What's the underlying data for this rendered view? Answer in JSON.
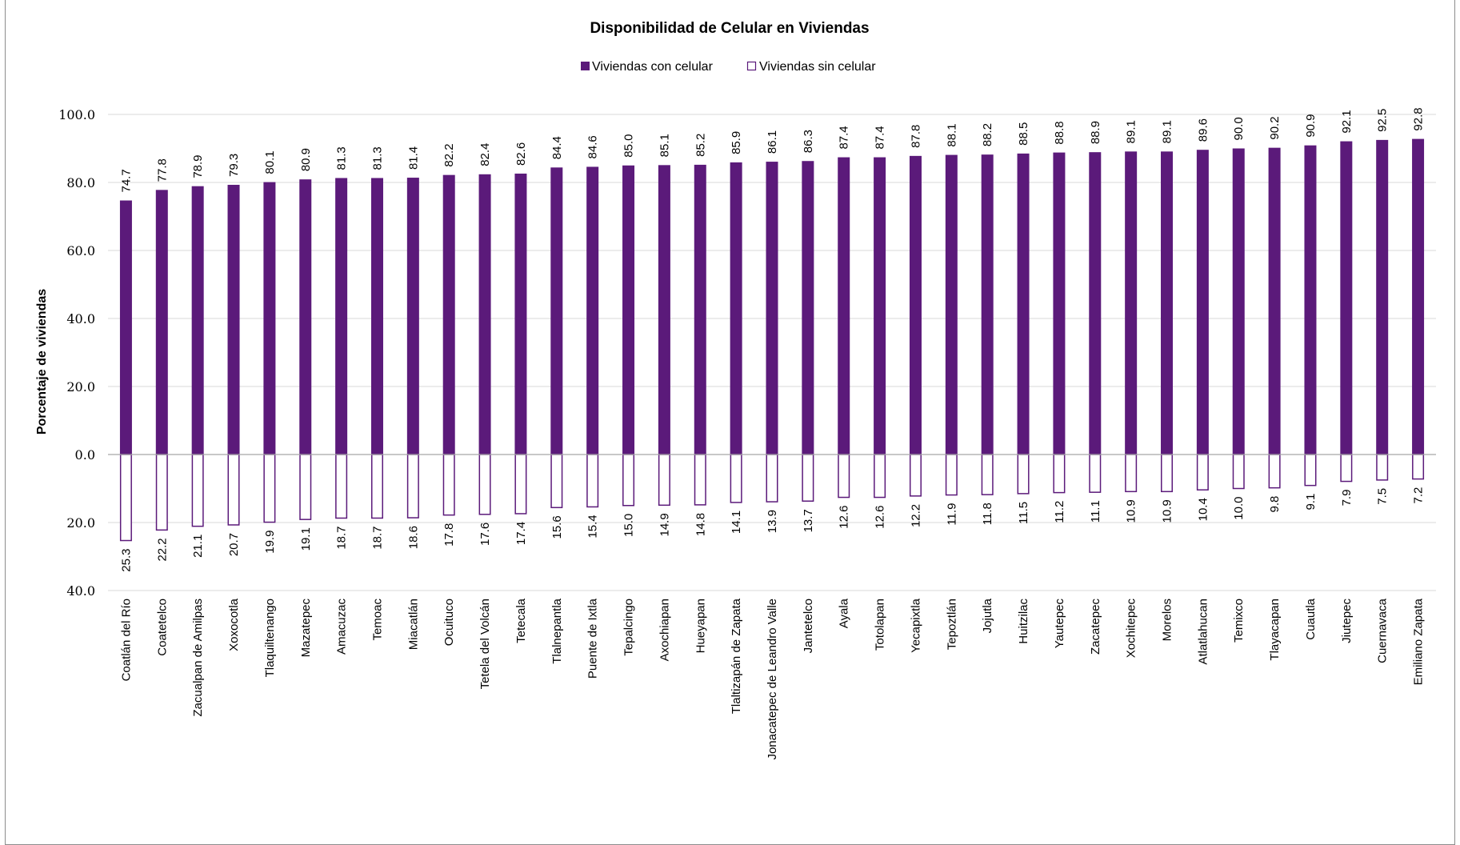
{
  "chart_data": {
    "type": "bar",
    "title": "Disponibilidad de Celular en Viviendas",
    "xlabel": "",
    "ylabel": "Porcentaje de viviendas",
    "ylim": [
      -40,
      100
    ],
    "yticks": [
      100,
      80,
      60,
      40,
      20,
      0,
      -20,
      -40
    ],
    "ytick_labels": [
      "100.0",
      "80.0",
      "60.0",
      "40.0",
      "20.0",
      "0.0",
      "20.0",
      "40.0"
    ],
    "legend_position": "top-center",
    "grid": true,
    "categories": [
      "Coatlán del Río",
      "Coatetelco",
      "Zacualpan de Amilpas",
      "Xoxocotla",
      "Tlaquiltenango",
      "Mazatepec",
      "Amacuzac",
      "Temoac",
      "Miacatlán",
      "Ocuituco",
      "Tetela del Volcán",
      "Tetecala",
      "Tlalnepantla",
      "Puente de Ixtla",
      "Tepalcingo",
      "Axochiapan",
      "Hueyapan",
      "Tlaltizapán de Zapata",
      "Jonacatepec de Leandro Valle",
      "Jantetelco",
      "Ayala",
      "Totolapan",
      "Yecapixtla",
      "Tepoztlán",
      "Jojutla",
      "Huitzilac",
      "Yautepec",
      "Zacatepec",
      "Xochitepec",
      "Morelos",
      "Atlatlahucan",
      "Temixco",
      "Tlayacapan",
      "Cuautla",
      "Jiutepec",
      "Cuernavaca",
      "Emiliano Zapata"
    ],
    "series": [
      {
        "name": "Viviendas con celular",
        "color": "#5b1a7a",
        "style": "filled",
        "values": [
          74.7,
          77.8,
          78.9,
          79.3,
          80.1,
          80.9,
          81.3,
          81.3,
          81.4,
          82.2,
          82.4,
          82.6,
          84.4,
          84.6,
          85.0,
          85.1,
          85.2,
          85.9,
          86.1,
          86.3,
          87.4,
          87.4,
          87.8,
          88.1,
          88.2,
          88.5,
          88.8,
          88.9,
          89.1,
          89.1,
          89.6,
          90.0,
          90.2,
          90.9,
          92.1,
          92.5,
          92.8
        ],
        "labels": [
          "74.7",
          "77.8",
          "78.9",
          "79.3",
          "80.1",
          "80.9",
          "81.3",
          "81.3",
          "81.4",
          "82.2",
          "82.4",
          "82.6",
          "84.4",
          "84.6",
          "85.0",
          "85.1",
          "85.2",
          "85.9",
          "86.1",
          "86.3",
          "87.4",
          "87.4",
          "87.8",
          "88.1",
          "88.2",
          "88.5",
          "88.8",
          "88.9",
          "89.1",
          "89.1",
          "89.6",
          "90.0",
          "90.2",
          "90.9",
          "92.1",
          "92.5",
          "92.8"
        ]
      },
      {
        "name": "Viviendas sin celular",
        "color": "#5b1a7a",
        "style": "outline",
        "values": [
          -25.3,
          -22.2,
          -21.1,
          -20.7,
          -19.9,
          -19.1,
          -18.7,
          -18.7,
          -18.6,
          -17.8,
          -17.6,
          -17.4,
          -15.6,
          -15.4,
          -15.0,
          -14.9,
          -14.8,
          -14.1,
          -13.9,
          -13.7,
          -12.6,
          -12.6,
          -12.2,
          -11.9,
          -11.8,
          -11.5,
          -11.2,
          -11.1,
          -10.9,
          -10.9,
          -10.4,
          -10.0,
          -9.8,
          -9.1,
          -7.9,
          -7.5,
          -7.2
        ],
        "labels": [
          "25.3",
          "22.2",
          "21.1",
          "20.7",
          "19.9",
          "19.1",
          "18.7",
          "18.7",
          "18.6",
          "17.8",
          "17.6",
          "17.4",
          "15.6",
          "15.4",
          "15.0",
          "14.9",
          "14.8",
          "14.1",
          "13.9",
          "13.7",
          "12.6",
          "12.6",
          "12.2",
          "11.9",
          "11.8",
          "11.5",
          "11.2",
          "11.1",
          "10.9",
          "10.9",
          "10.4",
          "10.0",
          "9.8",
          "9.1",
          "7.9",
          "7.5",
          "7.2"
        ]
      }
    ]
  }
}
